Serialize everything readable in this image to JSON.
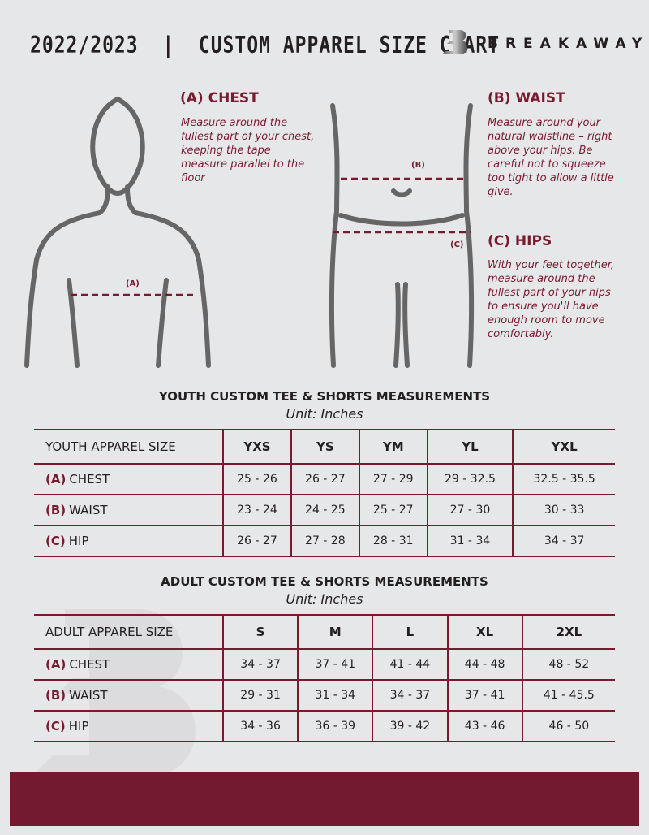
{
  "header": {
    "title": "2022/2023  |  CUSTOM APPAREL SIZE CHART",
    "brand": "BREAKAWAY",
    "logo_letter": "B"
  },
  "guide": {
    "chest": {
      "title": "(A) CHEST",
      "desc": "Measure around the fullest part of your chest, keeping the tape measure parallel to the floor",
      "marker": "(A)"
    },
    "waist": {
      "title": "(B) WAIST",
      "desc": "Measure around your natural waistline – right above your hips. Be careful not to squeeze too tight to allow a little give.",
      "marker": "(B)"
    },
    "hips": {
      "title": "(C) HIPS",
      "desc": "With your feet together, measure around the fullest part of your hips to ensure you'll have enough room to move comfortably.",
      "marker": "(C)"
    }
  },
  "youth": {
    "title": "YOUTH CUSTOM TEE & SHORTS MEASUREMENTS",
    "unit": "Unit: Inches",
    "header": "YOUTH APPAREL SIZE",
    "sizes": [
      "YXS",
      "YS",
      "YM",
      "YL",
      "YXL"
    ],
    "rows": [
      {
        "code": "(A)",
        "label": "CHEST",
        "values": [
          "25 - 26",
          "26 - 27",
          "27 - 29",
          "29 - 32.5",
          "32.5 - 35.5"
        ]
      },
      {
        "code": "(B)",
        "label": "WAIST",
        "values": [
          "23 - 24",
          "24 - 25",
          "25 - 27",
          "27 - 30",
          "30 - 33"
        ]
      },
      {
        "code": "(C)",
        "label": "HIP",
        "values": [
          "26 - 27",
          "27 - 28",
          "28 - 31",
          "31 - 34",
          "34 - 37"
        ]
      }
    ]
  },
  "adult": {
    "title": "ADULT CUSTOM TEE & SHORTS MEASUREMENTS",
    "unit": "Unit: Inches",
    "header": "ADULT APPAREL SIZE",
    "sizes": [
      "S",
      "M",
      "L",
      "XL",
      "2XL"
    ],
    "rows": [
      {
        "code": "(A)",
        "label": "CHEST",
        "values": [
          "34 - 37",
          "37 - 41",
          "41 - 44",
          "44 - 48",
          "48 - 52"
        ]
      },
      {
        "code": "(B)",
        "label": "WAIST",
        "values": [
          "29 - 31",
          "31 - 34",
          "34 - 37",
          "37 - 41",
          "41 - 45.5"
        ]
      },
      {
        "code": "(C)",
        "label": "HIP",
        "values": [
          "34 - 36",
          "36 - 39",
          "39 - 42",
          "43 - 46",
          "46 - 50"
        ]
      }
    ]
  },
  "colors": {
    "accent": "#7a1a30",
    "background": "#e6e7e9",
    "footer": "#731a2f"
  }
}
